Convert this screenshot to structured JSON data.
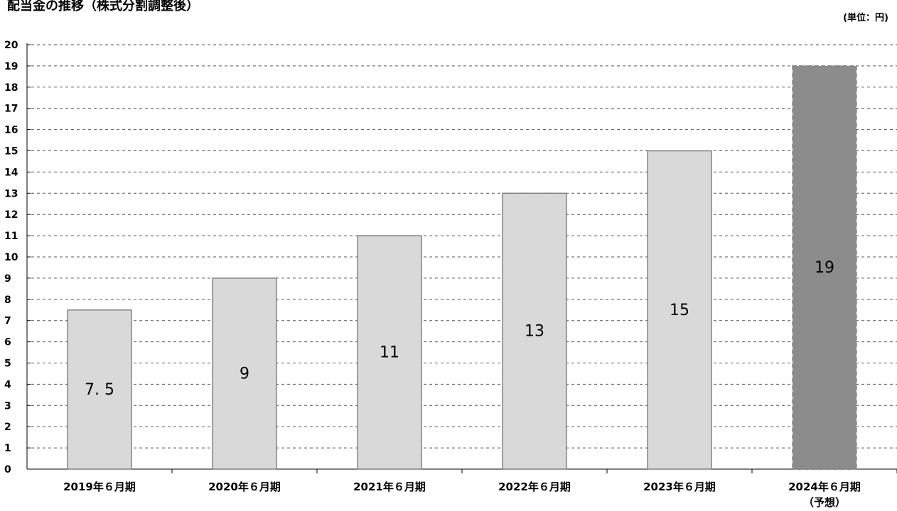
{
  "title": "配当金の推移（株式分割調整後）",
  "unit_label": "(単位：円)",
  "colors": {
    "actual_bar": "#d9d9d9",
    "forecast_bar": "#8c8c8c",
    "bar_stroke": "#808080",
    "grid": "#555555"
  },
  "chart_data": {
    "type": "bar",
    "title": "配当金の推移（株式分割調整後）",
    "unit": "(単位：円)",
    "categories": [
      "2019年６月期",
      "2020年６月期",
      "2021年６月期",
      "2022年６月期",
      "2023年６月期",
      "2024年６月期"
    ],
    "category_sublabels": [
      "",
      "",
      "",
      "",
      "",
      "（予想）"
    ],
    "values": [
      7.5,
      9,
      11,
      13,
      15,
      19
    ],
    "value_labels": [
      "7. 5",
      "9",
      "11",
      "13",
      "15",
      "19"
    ],
    "forecast": [
      false,
      false,
      false,
      false,
      false,
      true
    ],
    "ylim": [
      0,
      20
    ],
    "yticks": [
      0,
      1,
      2,
      3,
      4,
      5,
      6,
      7,
      8,
      9,
      10,
      11,
      12,
      13,
      14,
      15,
      16,
      17,
      18,
      19,
      20
    ],
    "grid": true,
    "legend": "none"
  }
}
